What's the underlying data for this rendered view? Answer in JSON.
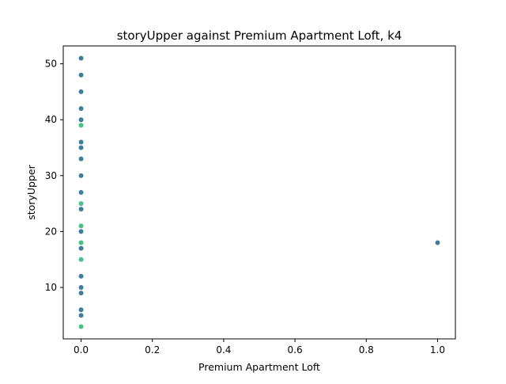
{
  "chart_data": {
    "type": "scatter",
    "title": "storyUpper against Premium Apartment Loft, k4",
    "xlabel": "Premium Apartment Loft",
    "ylabel": "storyUpper",
    "xlim": [
      -0.05,
      1.05
    ],
    "ylim": [
      0.8,
      53.2
    ],
    "xticks": [
      0.0,
      0.2,
      0.4,
      0.6,
      0.8,
      1.0
    ],
    "xtick_labels": [
      "0.0",
      "0.2",
      "0.4",
      "0.6",
      "0.8",
      "1.0"
    ],
    "yticks": [
      10,
      20,
      30,
      40,
      50
    ],
    "ytick_labels": [
      "10",
      "20",
      "30",
      "40",
      "50"
    ],
    "grid": false,
    "legend": "none",
    "series": [
      {
        "color": "#2c6e8e",
        "points": [
          [
            0,
            51
          ],
          [
            0,
            48
          ],
          [
            0,
            45
          ],
          [
            0,
            42
          ],
          [
            0,
            40
          ],
          [
            0,
            36
          ],
          [
            0,
            35
          ],
          [
            0,
            33
          ],
          [
            0,
            30
          ],
          [
            0,
            27
          ],
          [
            0,
            24
          ],
          [
            0,
            20
          ],
          [
            0,
            17
          ],
          [
            0,
            12
          ],
          [
            0,
            10
          ],
          [
            0,
            9
          ],
          [
            0,
            6
          ],
          [
            0,
            5
          ],
          [
            1,
            18
          ]
        ]
      },
      {
        "color": "#35b779",
        "points": [
          [
            0,
            39
          ],
          [
            0,
            25
          ],
          [
            0,
            21
          ],
          [
            0,
            18
          ],
          [
            0,
            15
          ],
          [
            0,
            3
          ]
        ]
      }
    ]
  }
}
